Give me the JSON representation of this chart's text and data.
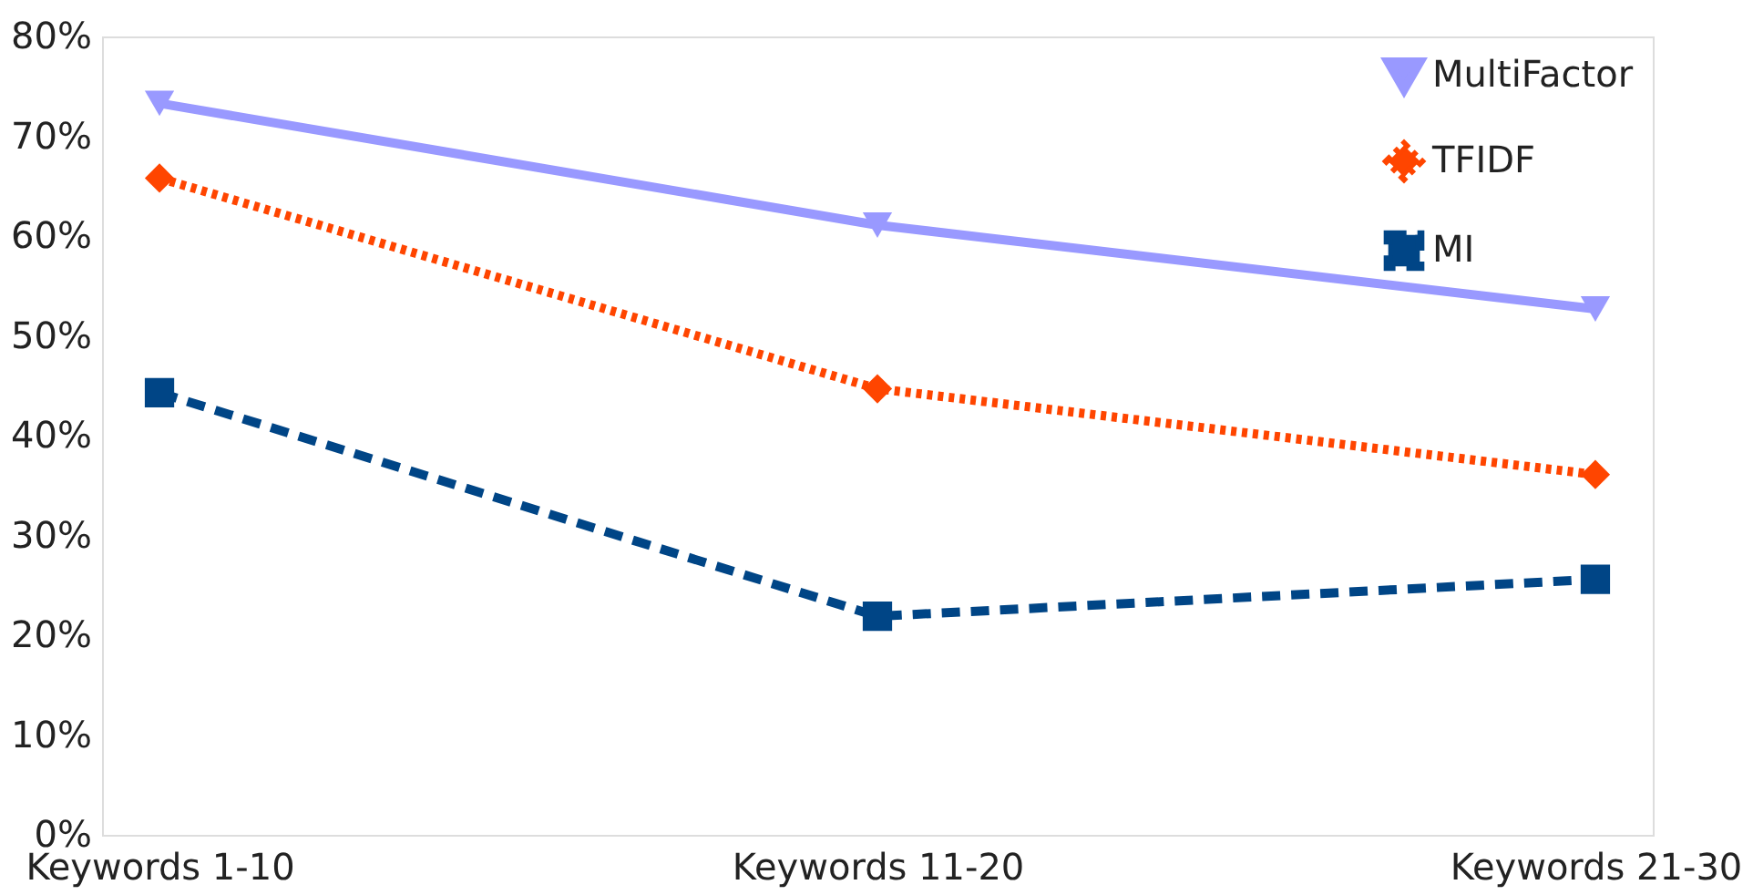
{
  "chart_data": {
    "type": "line",
    "categories": [
      "Keywords 1-10",
      "Keywords 11-20",
      "Keywords 21-30"
    ],
    "series": [
      {
        "name": "MultiFactor",
        "color": "#9999ff",
        "values": [
          73.3,
          61.1,
          52.7
        ],
        "marker": "triangle",
        "line_style": "solid"
      },
      {
        "name": "TFIDF",
        "color": "#ff4500",
        "values": [
          65.8,
          44.7,
          36.1
        ],
        "marker": "diamond",
        "line_style": "dotted"
      },
      {
        "name": "MI",
        "color": "#004586",
        "values": [
          44.3,
          21.9,
          25.6
        ],
        "marker": "square",
        "line_style": "dashed"
      }
    ],
    "ylim": [
      0,
      80
    ],
    "yticks": [
      {
        "value": 0,
        "label": "0%"
      },
      {
        "value": 10,
        "label": "10%"
      },
      {
        "value": 20,
        "label": "20%"
      },
      {
        "value": 30,
        "label": "30%"
      },
      {
        "value": 40,
        "label": "40%"
      },
      {
        "value": 50,
        "label": "50%"
      },
      {
        "value": 60,
        "label": "60%"
      },
      {
        "value": 70,
        "label": "70%"
      },
      {
        "value": 80,
        "label": "80%"
      }
    ],
    "grid": false,
    "legend": "top right"
  }
}
